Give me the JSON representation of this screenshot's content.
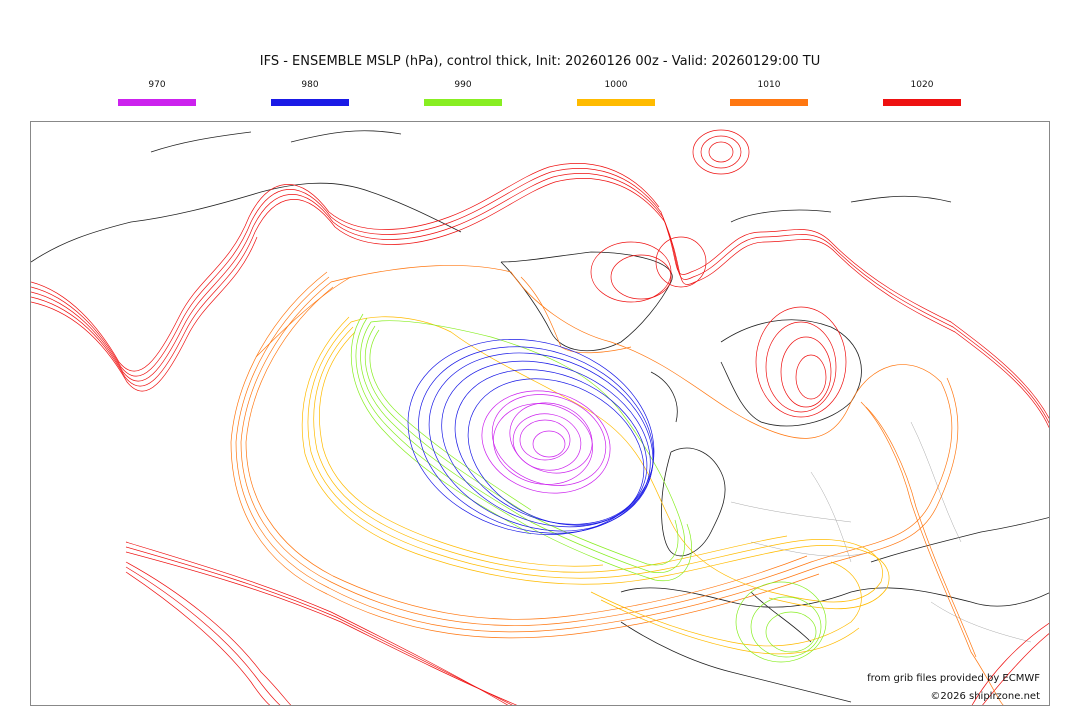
{
  "title": "IFS - ENSEMBLE MSLP (hPa), control thick, Init: 20260126 00z - Valid: 20260129:00 TU",
  "legend": [
    {
      "label": "970",
      "color": "#cc22ee"
    },
    {
      "label": "980",
      "color": "#1a1ae6"
    },
    {
      "label": "990",
      "color": "#88ee22"
    },
    {
      "label": "1000",
      "color": "#ffbb00"
    },
    {
      "label": "1010",
      "color": "#ff7711"
    },
    {
      "label": "1020",
      "color": "#ee1111"
    }
  ],
  "credits": {
    "source": "from grib files provided by ECMWF",
    "copyright": "©2026 shiplrzone.net"
  }
}
